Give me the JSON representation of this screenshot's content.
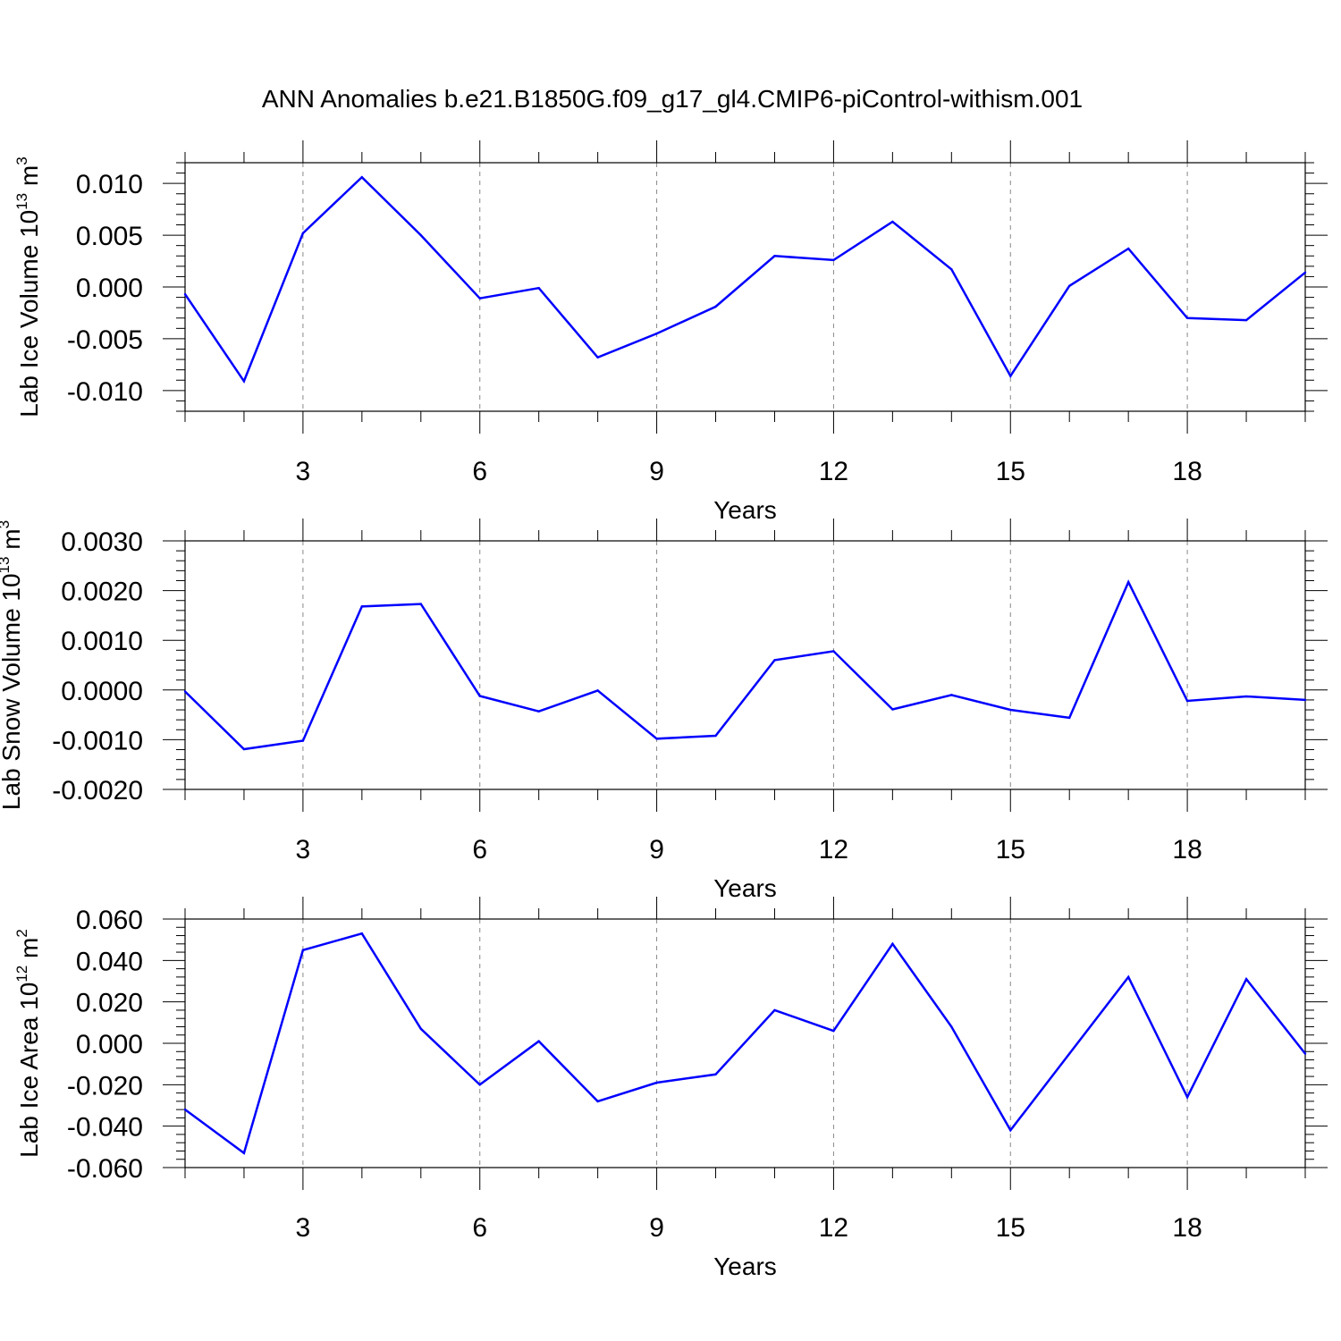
{
  "title": "ANN Anomalies b.e21.B1850G.f09_g17_gl4.CMIP6-piControl-withism.001",
  "colors": {
    "line": "#0000ff",
    "axis": "#000000",
    "grid": "#888888",
    "background": "#ffffff"
  },
  "chart_data": [
    {
      "type": "line",
      "ylabel": "Lab Ice Volume 10",
      "ylabel_sup": "13",
      "ylabel_unit": " m",
      "ylabel_unit_sup": "3",
      "xlabel": "Years",
      "xlim": [
        1,
        20
      ],
      "ylim": [
        -0.012,
        0.012
      ],
      "yticks": [
        -0.01,
        -0.005,
        0.0,
        0.005,
        0.01
      ],
      "ytick_labels": [
        "-0.010",
        "-0.005",
        "0.000",
        "0.005",
        "0.010"
      ],
      "yminor_step": 0.001,
      "xticks": [
        3,
        6,
        9,
        12,
        15,
        18
      ],
      "xtick_labels": [
        "3",
        "6",
        "9",
        "12",
        "15",
        "18"
      ],
      "grid": "vertical dashed at major x ticks",
      "series": [
        {
          "x": [
            1,
            2,
            3,
            4,
            5,
            6,
            7,
            8,
            9,
            10,
            11,
            12,
            13,
            14,
            15,
            16,
            17,
            18,
            19,
            20
          ],
          "values": [
            -0.0007,
            -0.0091,
            0.0052,
            0.0106,
            0.005,
            -0.0011,
            -0.0001,
            -0.0068,
            -0.0045,
            -0.0019,
            0.003,
            0.0026,
            0.0063,
            0.0017,
            -0.0086,
            0.0001,
            0.0037,
            -0.003,
            -0.0032,
            0.0014
          ]
        }
      ]
    },
    {
      "type": "line",
      "ylabel": "Lab Snow Volume 10",
      "ylabel_sup": "13",
      "ylabel_unit": " m",
      "ylabel_unit_sup": "3",
      "xlabel": "Years",
      "xlim": [
        1,
        20
      ],
      "ylim": [
        -0.002,
        0.003
      ],
      "yticks": [
        -0.002,
        -0.001,
        0.0,
        0.001,
        0.002,
        0.003
      ],
      "ytick_labels": [
        "-0.0020",
        "-0.0010",
        "0.0000",
        "0.0010",
        "0.0020",
        "0.0030"
      ],
      "yminor_step": 0.0002,
      "xticks": [
        3,
        6,
        9,
        12,
        15,
        18
      ],
      "xtick_labels": [
        "3",
        "6",
        "9",
        "12",
        "15",
        "18"
      ],
      "grid": "vertical dashed at major x ticks",
      "series": [
        {
          "x": [
            1,
            2,
            3,
            4,
            5,
            6,
            7,
            8,
            9,
            10,
            11,
            12,
            13,
            14,
            15,
            16,
            17,
            18,
            19,
            20
          ],
          "values": [
            -3e-05,
            -0.00119,
            -0.00102,
            0.00168,
            0.00173,
            -0.00012,
            -0.00043,
            -1e-05,
            -0.00098,
            -0.00092,
            0.0006,
            0.00078,
            -0.00039,
            -0.0001,
            -0.0004,
            -0.00056,
            0.00217,
            -0.00022,
            -0.00013,
            -0.0002
          ]
        }
      ]
    },
    {
      "type": "line",
      "ylabel": "Lab Ice Area 10",
      "ylabel_sup": "12",
      "ylabel_unit": " m",
      "ylabel_unit_sup": "2",
      "xlabel": "Years",
      "xlim": [
        1,
        20
      ],
      "ylim": [
        -0.06,
        0.06
      ],
      "yticks": [
        -0.06,
        -0.04,
        -0.02,
        0.0,
        0.02,
        0.04,
        0.06
      ],
      "ytick_labels": [
        "-0.060",
        "-0.040",
        "-0.020",
        "0.000",
        "0.020",
        "0.040",
        "0.060"
      ],
      "yminor_step": 0.004,
      "xticks": [
        3,
        6,
        9,
        12,
        15,
        18
      ],
      "xtick_labels": [
        "3",
        "6",
        "9",
        "12",
        "15",
        "18"
      ],
      "grid": "vertical dashed at major x ticks",
      "series": [
        {
          "x": [
            1,
            2,
            3,
            4,
            5,
            6,
            7,
            8,
            9,
            10,
            11,
            12,
            13,
            14,
            15,
            16,
            17,
            18,
            19,
            20
          ],
          "values": [
            -0.032,
            -0.053,
            0.045,
            0.053,
            0.007,
            -0.02,
            0.001,
            -0.028,
            -0.019,
            -0.015,
            0.016,
            0.006,
            0.048,
            0.008,
            -0.042,
            -0.005,
            0.032,
            -0.026,
            0.031,
            -0.005
          ]
        }
      ]
    }
  ]
}
